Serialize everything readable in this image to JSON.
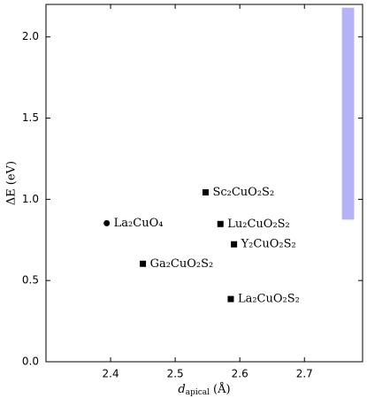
{
  "chart_data": {
    "type": "scatter",
    "x": [
      2.394,
      2.547,
      2.57,
      2.591,
      2.45,
      2.586
    ],
    "values": [
      0.853,
      1.043,
      0.848,
      0.723,
      0.603,
      0.386
    ],
    "point_labels": [
      "La₂CuO₄",
      "Sc₂CuO₂S₂",
      "Lu₂CuO₂S₂",
      "Y₂CuO₂S₂",
      "Ga₂CuO₂S₂",
      "La₂CuO₂S₂"
    ],
    "markers": [
      "circle",
      "square",
      "square",
      "square",
      "square",
      "square"
    ],
    "color": "#000000",
    "band": {
      "x": [
        2.758,
        2.777
      ],
      "y": [
        0.875,
        2.18
      ],
      "color": "#b3b3f5"
    },
    "xlim": [
      2.3,
      2.79
    ],
    "ylim": [
      0,
      2.2
    ],
    "xticks": [
      2.4,
      2.5,
      2.6,
      2.7
    ],
    "yticks": [
      {
        "value": 0,
        "label": "0.0"
      },
      0.5,
      {
        "value": 1,
        "label": "1.0"
      },
      1.5,
      {
        "value": 2,
        "label": "2.0"
      }
    ],
    "xlabel": {
      "symbol": "d",
      "subscript": "apical",
      "unit": "(Å)"
    },
    "ylabel": "ΔE (eV)",
    "grid": false
  }
}
